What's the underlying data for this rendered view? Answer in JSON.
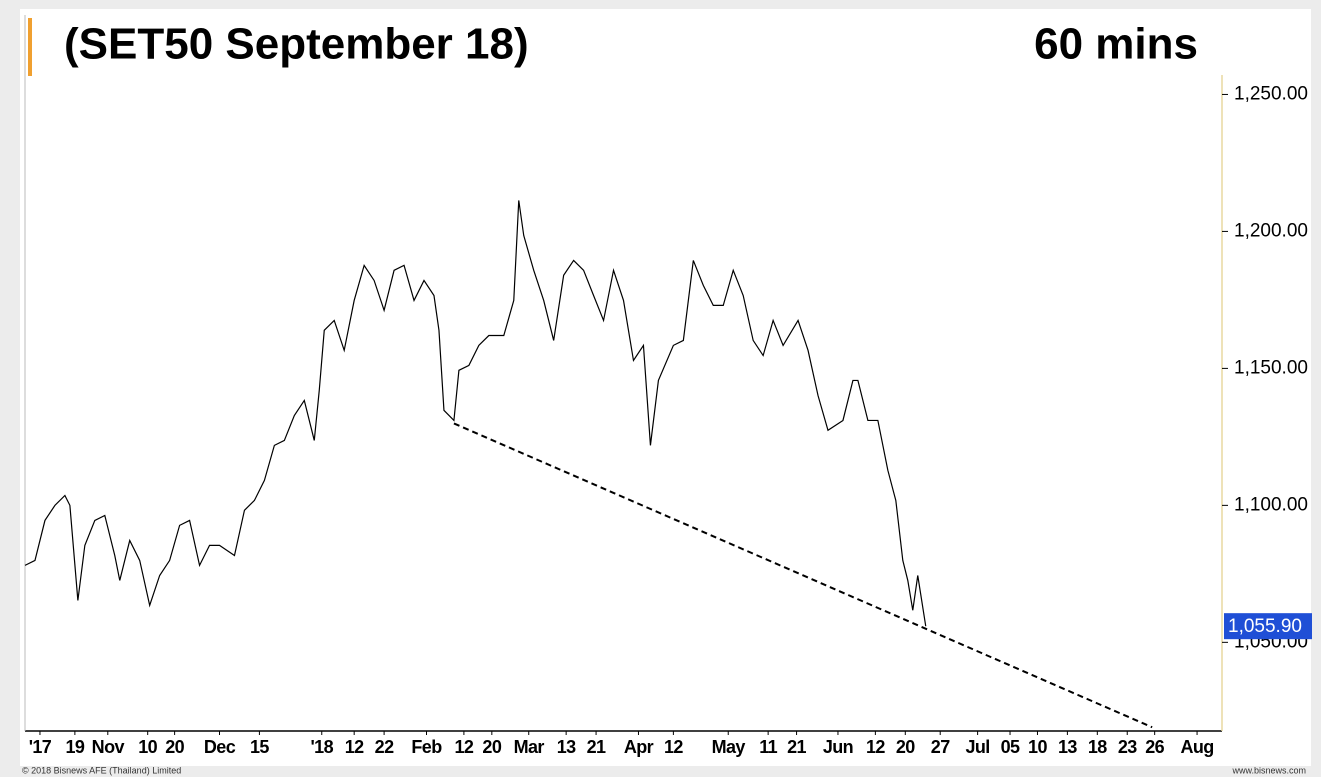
{
  "chart_data": {
    "type": "line",
    "title": "(SET50 September 18)",
    "subtitle": "60 mins",
    "footer_left": "© 2018 Bisnews AFE (Thailand) Limited",
    "footer_right": "www.bisnews.com",
    "xlim": [
      0,
      240
    ],
    "ylim": [
      1018,
      1279
    ],
    "yticks": [
      {
        "value": 1050,
        "label": "1,050.00"
      },
      {
        "value": 1100,
        "label": "1,100.00"
      },
      {
        "value": 1150,
        "label": "1,150.00"
      },
      {
        "value": 1200,
        "label": "1,200.00"
      },
      {
        "value": 1250,
        "label": "1,250.00"
      }
    ],
    "xticks": [
      {
        "value": 3,
        "label": "'17"
      },
      {
        "value": 10,
        "label": "19"
      },
      {
        "value": 16.6,
        "label": "Nov"
      },
      {
        "value": 24.6,
        "label": "10"
      },
      {
        "value": 30,
        "label": "20"
      },
      {
        "value": 39,
        "label": "Dec"
      },
      {
        "value": 47,
        "label": "15"
      },
      {
        "value": 59.5,
        "label": "'18"
      },
      {
        "value": 66,
        "label": "12"
      },
      {
        "value": 72,
        "label": "22"
      },
      {
        "value": 80.5,
        "label": "Feb"
      },
      {
        "value": 88,
        "label": "12"
      },
      {
        "value": 93.6,
        "label": "20"
      },
      {
        "value": 101,
        "label": "Mar"
      },
      {
        "value": 108.5,
        "label": "13"
      },
      {
        "value": 114.5,
        "label": "21"
      },
      {
        "value": 123,
        "label": "Apr"
      },
      {
        "value": 130,
        "label": "12"
      },
      {
        "value": 141,
        "label": "May"
      },
      {
        "value": 149,
        "label": "11"
      },
      {
        "value": 154.7,
        "label": "21"
      },
      {
        "value": 163,
        "label": "Jun"
      },
      {
        "value": 170.5,
        "label": "12"
      },
      {
        "value": 176.5,
        "label": "20"
      },
      {
        "value": 183.5,
        "label": "27"
      },
      {
        "value": 191,
        "label": "Jul"
      },
      {
        "value": 197.5,
        "label": "05"
      },
      {
        "value": 203,
        "label": "10"
      },
      {
        "value": 209,
        "label": "13"
      },
      {
        "value": 215,
        "label": "18"
      },
      {
        "value": 221,
        "label": "23"
      },
      {
        "value": 226.5,
        "label": "26"
      },
      {
        "value": 235,
        "label": "Aug"
      }
    ],
    "series": [
      {
        "color": "#000000",
        "x": [
          0,
          2,
          4,
          6,
          8,
          9,
          10.6,
          12,
          14,
          16,
          18,
          19,
          21,
          23,
          25,
          27,
          29,
          31,
          33,
          35,
          37,
          39,
          42,
          44,
          46,
          48,
          50,
          52,
          54,
          56,
          58,
          59,
          60,
          62,
          64,
          66,
          68,
          70,
          72,
          74,
          76,
          78,
          80,
          82,
          83,
          84,
          86,
          87,
          89,
          91,
          93,
          96,
          98,
          99,
          100,
          102,
          104,
          106,
          108,
          110,
          112,
          114,
          116,
          118,
          120,
          122,
          124,
          125.4,
          127,
          130,
          132,
          134,
          136,
          138,
          140,
          142,
          144,
          146,
          148,
          150,
          152,
          155,
          157,
          159,
          161,
          164,
          166,
          167,
          169,
          171,
          173,
          174.6,
          176,
          177,
          178,
          179,
          180.6
        ],
        "values": [
          1078.1,
          1079.9,
          1094.5,
          1100,
          1103.6,
          1100,
          1065.3,
          1085.4,
          1094.5,
          1096.3,
          1081.7,
          1072.6,
          1087.2,
          1079.9,
          1063.5,
          1074.4,
          1079.9,
          1092.7,
          1094.5,
          1078.1,
          1085.4,
          1085.4,
          1081.7,
          1098.2,
          1101.8,
          1109.1,
          1121.9,
          1123.7,
          1132.8,
          1138.3,
          1123.7,
          1142,
          1163.9,
          1167.5,
          1156.6,
          1174.8,
          1187.6,
          1182.1,
          1171.2,
          1185.8,
          1187.6,
          1174.8,
          1182.1,
          1176.6,
          1163.9,
          1134.7,
          1131,
          1149.3,
          1151.1,
          1158.4,
          1162,
          1162,
          1174.8,
          1211.3,
          1198.5,
          1185.8,
          1174.8,
          1160.2,
          1184,
          1189.4,
          1185.8,
          1176.6,
          1167.5,
          1185.8,
          1174.8,
          1152.9,
          1158.4,
          1121.9,
          1145.6,
          1158.4,
          1160.2,
          1189.4,
          1180.3,
          1173,
          1173,
          1185.8,
          1176.6,
          1160.2,
          1154.7,
          1167.5,
          1158.4,
          1167.5,
          1156.6,
          1140.1,
          1127.4,
          1131,
          1145.6,
          1145.6,
          1131,
          1131,
          1112.8,
          1101.8,
          1079.9,
          1072.6,
          1061.7,
          1074.4,
          1055.9
        ]
      }
    ],
    "trendline": {
      "color": "#000000",
      "x": [
        86,
        226
      ],
      "values": [
        1129.9,
        1019
      ]
    },
    "price_marker": {
      "value": 1055.9,
      "label": "1,055.90",
      "color": "#1f4fd6"
    }
  }
}
